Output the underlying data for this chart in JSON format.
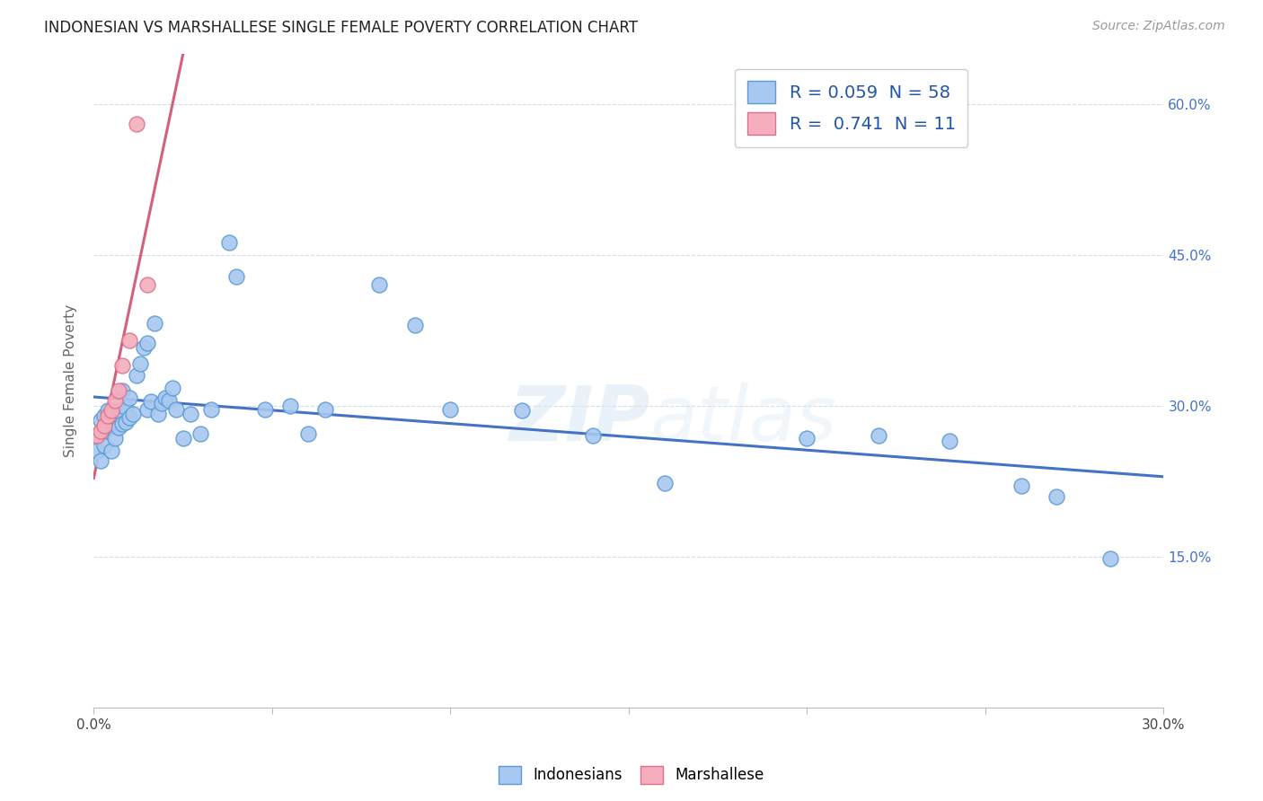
{
  "title": "INDONESIAN VS MARSHALLESE SINGLE FEMALE POVERTY CORRELATION CHART",
  "source": "Source: ZipAtlas.com",
  "ylabel": "Single Female Poverty",
  "xlim": [
    0.0,
    0.3
  ],
  "ylim": [
    0.0,
    0.65
  ],
  "color_indonesian_fill": "#A8C8F0",
  "color_indonesian_edge": "#5B9BD5",
  "color_marshallese_fill": "#F4AEBE",
  "color_marshallese_edge": "#E0708A",
  "color_line_indonesian": "#4472C4",
  "color_line_marshallese": "#D45F7A",
  "watermark": "ZIPatlas",
  "indonesian_x": [
    0.001,
    0.001,
    0.002,
    0.002,
    0.003,
    0.003,
    0.003,
    0.004,
    0.004,
    0.005,
    0.005,
    0.006,
    0.006,
    0.006,
    0.007,
    0.007,
    0.008,
    0.008,
    0.009,
    0.009,
    0.01,
    0.01,
    0.011,
    0.012,
    0.013,
    0.014,
    0.015,
    0.015,
    0.016,
    0.017,
    0.018,
    0.019,
    0.02,
    0.021,
    0.022,
    0.023,
    0.025,
    0.027,
    0.03,
    0.033,
    0.038,
    0.04,
    0.048,
    0.055,
    0.06,
    0.065,
    0.08,
    0.09,
    0.1,
    0.12,
    0.14,
    0.16,
    0.2,
    0.22,
    0.24,
    0.26,
    0.27,
    0.285
  ],
  "indonesian_y": [
    0.27,
    0.255,
    0.285,
    0.245,
    0.29,
    0.26,
    0.275,
    0.295,
    0.278,
    0.29,
    0.255,
    0.285,
    0.268,
    0.29,
    0.295,
    0.278,
    0.315,
    0.282,
    0.298,
    0.284,
    0.308,
    0.288,
    0.292,
    0.33,
    0.342,
    0.358,
    0.362,
    0.296,
    0.304,
    0.382,
    0.292,
    0.302,
    0.308,
    0.305,
    0.318,
    0.296,
    0.268,
    0.292,
    0.272,
    0.296,
    0.462,
    0.428,
    0.296,
    0.3,
    0.272,
    0.296,
    0.42,
    0.38,
    0.296,
    0.295,
    0.27,
    0.223,
    0.268,
    0.27,
    0.265,
    0.22,
    0.21,
    0.148
  ],
  "marshallese_x": [
    0.001,
    0.002,
    0.003,
    0.004,
    0.005,
    0.006,
    0.007,
    0.008,
    0.01,
    0.012,
    0.015
  ],
  "marshallese_y": [
    0.27,
    0.275,
    0.28,
    0.29,
    0.295,
    0.305,
    0.315,
    0.34,
    0.365,
    0.58,
    0.42
  ]
}
